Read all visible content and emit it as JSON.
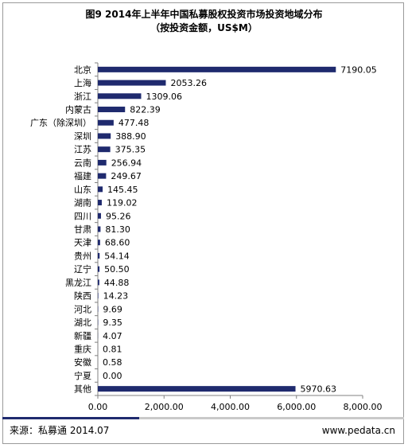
{
  "title": "图9 2014年上半年中国私募股权投资市场投资地域分布",
  "subtitle": "（按投资金额，US$M）",
  "chart_data": {
    "type": "bar",
    "orientation": "horizontal",
    "categories": [
      "北京",
      "上海",
      "浙江",
      "内蒙古",
      "广东（除深圳）",
      "深圳",
      "江苏",
      "云南",
      "福建",
      "山东",
      "湖南",
      "四川",
      "甘肃",
      "天津",
      "贵州",
      "辽宁",
      "黑龙江",
      "陕西",
      "河北",
      "湖北",
      "新疆",
      "重庆",
      "安徽",
      "宁夏",
      "其他"
    ],
    "values": [
      7190.05,
      2053.26,
      1309.06,
      822.39,
      477.48,
      388.9,
      375.35,
      256.94,
      249.67,
      145.45,
      119.02,
      95.26,
      81.3,
      68.6,
      54.14,
      50.5,
      44.88,
      14.23,
      9.69,
      9.35,
      4.07,
      0.81,
      0.58,
      0.0,
      5970.63
    ],
    "value_labels": [
      "7190.05",
      "2053.26",
      "1309.06",
      "822.39",
      "477.48",
      "388.90",
      "375.35",
      "256.94",
      "249.67",
      "145.45",
      "119.02",
      "95.26",
      "81.30",
      "68.60",
      "54.14",
      "50.50",
      "44.88",
      "14.23",
      "9.69",
      "9.35",
      "4.07",
      "0.81",
      "0.58",
      "0.00",
      "5970.63"
    ],
    "xlim": [
      0,
      8000
    ],
    "x_ticks": [
      0,
      2000,
      4000,
      6000,
      8000
    ],
    "x_tick_labels": [
      "0.00",
      "2,000.00",
      "4,000.00",
      "6,000.00",
      "8,000.00"
    ],
    "bar_color": "#1f2a6e",
    "grid": false,
    "legend": "none"
  },
  "footer": {
    "source": "来源：私募通  2014.07",
    "website": "www.pedata.cn",
    "accent_color": "#1f2a6e"
  }
}
